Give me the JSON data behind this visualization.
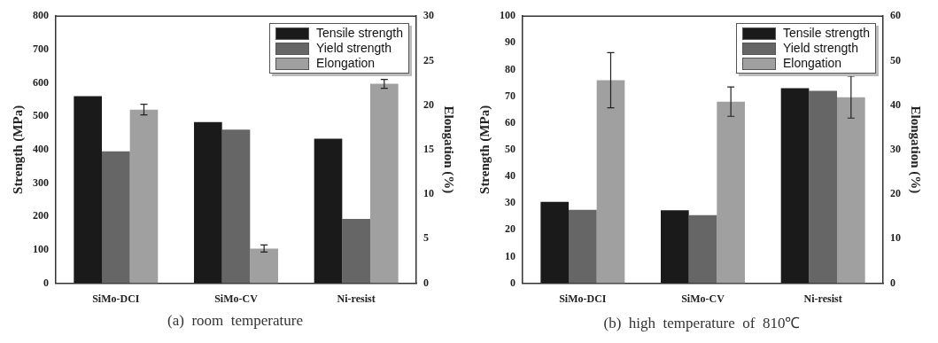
{
  "chart_data": [
    {
      "type": "bar",
      "categories": [
        "SiMo-DCI",
        "SiMo-CV",
        "Ni-resist"
      ],
      "ylabel": "Strength (MPa)",
      "y2label": "Elongation (%)",
      "series": [
        {
          "name": "Tensile strength",
          "color": "#1a1a1a",
          "values": [
            560,
            483,
            433
          ]
        },
        {
          "name": "Yield strength",
          "color": "#666666",
          "values": [
            395,
            460,
            193
          ]
        },
        {
          "name": "Elongation",
          "color": "#a0a0a0",
          "values": [
            19.5,
            3.9,
            22.4
          ],
          "axis": "y2",
          "errors": [
            0.6,
            0.4,
            0.5
          ]
        }
      ],
      "ylim": [
        0,
        800
      ],
      "yticks": [
        0,
        100,
        200,
        300,
        400,
        500,
        600,
        700,
        800
      ],
      "y2lim": [
        0,
        30
      ],
      "y2ticks": [
        0,
        5,
        10,
        15,
        20,
        25,
        30
      ],
      "grid": false,
      "legend": "top right",
      "annotations": [
        "(a)  room  temperature"
      ]
    },
    {
      "type": "bar",
      "categories": [
        "SiMo-DCI",
        "SiMo-CV",
        "Ni-resist"
      ],
      "ylabel": "Strength (MPa)",
      "y2label": "Elongation (%)",
      "series": [
        {
          "name": "Tensile strength",
          "color": "#1a1a1a",
          "values": [
            30.5,
            27.3,
            73
          ]
        },
        {
          "name": "Yield strength",
          "color": "#666666",
          "values": [
            27.5,
            25.5,
            72
          ]
        },
        {
          "name": "Elongation",
          "color": "#a0a0a0",
          "values": [
            45.6,
            40.8,
            41.8
          ],
          "axis": "y2",
          "errors": [
            6.2,
            3.3,
            4.7
          ]
        }
      ],
      "ylim": [
        0,
        100
      ],
      "yticks": [
        0,
        10,
        20,
        30,
        40,
        50,
        60,
        70,
        80,
        90,
        100
      ],
      "y2lim": [
        0,
        60
      ],
      "y2ticks": [
        0,
        10,
        20,
        30,
        40,
        50,
        60
      ],
      "grid": false,
      "legend": "top right",
      "annotations": [
        "(b)  high  temperature  of  810℃"
      ]
    }
  ]
}
